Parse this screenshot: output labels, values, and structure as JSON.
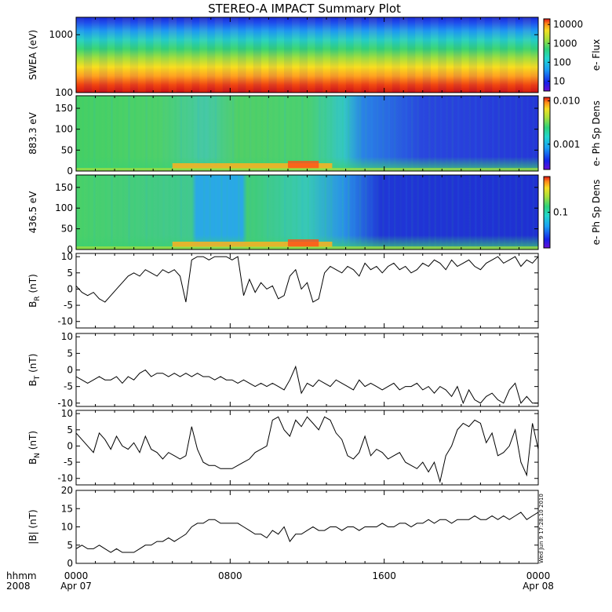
{
  "title": "STEREO-A IMPACT Summary Plot",
  "timestamp": "Wed Jun 9 17:28:10 2010",
  "time_axis": {
    "row_label_1": "hhmm",
    "row_label_2": "2008",
    "ticks": [
      {
        "hour": 0,
        "label": "0000",
        "date": "Apr 07"
      },
      {
        "hour": 8,
        "label": "0800",
        "date": ""
      },
      {
        "hour": 16,
        "label": "1600",
        "date": ""
      },
      {
        "hour": 24,
        "label": "0000",
        "date": "Apr 08"
      }
    ]
  },
  "chart_data": [
    {
      "type": "heatmap",
      "id": "swea",
      "ylabel": "SWEA (eV)",
      "y_scale": "log",
      "ylim": [
        100,
        2000
      ],
      "yticks": [
        "100",
        "1000"
      ],
      "colorbar_label": "e- Flux",
      "colorbar_ticks": [
        "10",
        "100",
        "1000",
        "10000"
      ],
      "colorbar_scale": "log",
      "colorbar_range": [
        3,
        20000
      ]
    },
    {
      "type": "heatmap",
      "id": "pad883",
      "ylabel": "883.3 eV",
      "ylim": [
        0,
        180
      ],
      "yticks": [
        "0",
        "50",
        "100",
        "150"
      ],
      "colorbar_label": "e- Ph Sp Dens",
      "colorbar_ticks": [
        "0.001",
        "0.010"
      ],
      "colorbar_scale": "log"
    },
    {
      "type": "heatmap",
      "id": "pad436",
      "ylabel": "436.5 eV",
      "ylim": [
        0,
        180
      ],
      "yticks": [
        "0",
        "50",
        "100",
        "150"
      ],
      "colorbar_label": "e- Ph Sp Dens",
      "colorbar_ticks": [
        "0.1"
      ],
      "colorbar_scale": "log"
    },
    {
      "type": "line",
      "id": "br",
      "ylabel": "B",
      "ylabel_sub": "R",
      "ylabel_unit": "(nT)",
      "ylim": [
        -12,
        11
      ],
      "yticks": [
        "-10",
        "-5",
        "0",
        "5",
        "10"
      ],
      "xlim": [
        0,
        24
      ],
      "x": [
        0,
        0.3,
        0.6,
        0.9,
        1.2,
        1.5,
        1.8,
        2.1,
        2.4,
        2.7,
        3.0,
        3.3,
        3.6,
        3.9,
        4.2,
        4.5,
        4.8,
        5.1,
        5.4,
        5.7,
        6.0,
        6.3,
        6.6,
        6.9,
        7.2,
        7.5,
        7.8,
        8.1,
        8.4,
        8.7,
        9.0,
        9.3,
        9.6,
        9.9,
        10.2,
        10.5,
        10.8,
        11.1,
        11.4,
        11.7,
        12.0,
        12.3,
        12.6,
        12.9,
        13.2,
        13.5,
        13.8,
        14.1,
        14.4,
        14.7,
        15.0,
        15.3,
        15.6,
        15.9,
        16.2,
        16.5,
        16.8,
        17.1,
        17.4,
        17.7,
        18.0,
        18.3,
        18.6,
        18.9,
        19.2,
        19.5,
        19.8,
        20.1,
        20.4,
        20.7,
        21.0,
        21.3,
        21.6,
        21.9,
        22.2,
        22.5,
        22.8,
        23.1,
        23.4,
        23.7,
        24.0
      ],
      "y": [
        1,
        -1,
        -2,
        -1,
        -3,
        -4,
        -2,
        0,
        2,
        4,
        5,
        4,
        6,
        5,
        4,
        6,
        5,
        6,
        4,
        -4,
        9,
        10,
        10,
        9,
        10,
        10,
        10,
        9,
        10,
        -2,
        3,
        -1,
        2,
        0,
        1,
        -3,
        -2,
        4,
        6,
        0,
        2,
        -4,
        -3,
        5,
        7,
        6,
        5,
        7,
        6,
        4,
        8,
        6,
        7,
        5,
        7,
        8,
        6,
        7,
        5,
        6,
        8,
        7,
        9,
        8,
        6,
        9,
        7,
        8,
        9,
        7,
        6,
        8,
        9,
        10,
        8,
        9,
        10,
        7,
        9,
        8,
        10
      ]
    },
    {
      "type": "line",
      "id": "bt",
      "ylabel": "B",
      "ylabel_sub": "T",
      "ylabel_unit": "(nT)",
      "ylim": [
        -11,
        11
      ],
      "yticks": [
        "-10",
        "-5",
        "0",
        "5",
        "10"
      ],
      "xlim": [
        0,
        24
      ],
      "x": [
        0,
        0.3,
        0.6,
        0.9,
        1.2,
        1.5,
        1.8,
        2.1,
        2.4,
        2.7,
        3.0,
        3.3,
        3.6,
        3.9,
        4.2,
        4.5,
        4.8,
        5.1,
        5.4,
        5.7,
        6.0,
        6.3,
        6.6,
        6.9,
        7.2,
        7.5,
        7.8,
        8.1,
        8.4,
        8.7,
        9.0,
        9.3,
        9.6,
        9.9,
        10.2,
        10.5,
        10.8,
        11.1,
        11.4,
        11.7,
        12.0,
        12.3,
        12.6,
        12.9,
        13.2,
        13.5,
        13.8,
        14.1,
        14.4,
        14.7,
        15.0,
        15.3,
        15.6,
        15.9,
        16.2,
        16.5,
        16.8,
        17.1,
        17.4,
        17.7,
        18.0,
        18.3,
        18.6,
        18.9,
        19.2,
        19.5,
        19.8,
        20.1,
        20.4,
        20.7,
        21.0,
        21.3,
        21.6,
        21.9,
        22.2,
        22.5,
        22.8,
        23.1,
        23.4,
        23.7,
        24.0
      ],
      "y": [
        -2,
        -3,
        -4,
        -3,
        -2,
        -3,
        -3,
        -2,
        -4,
        -2,
        -3,
        -1,
        0,
        -2,
        -1,
        -1,
        -2,
        -1,
        -2,
        -1,
        -2,
        -1,
        -2,
        -2,
        -3,
        -2,
        -3,
        -3,
        -4,
        -3,
        -4,
        -5,
        -4,
        -5,
        -4,
        -5,
        -6,
        -3,
        1,
        -7,
        -4,
        -5,
        -3,
        -4,
        -5,
        -3,
        -4,
        -5,
        -6,
        -3,
        -5,
        -4,
        -5,
        -6,
        -5,
        -4,
        -6,
        -5,
        -5,
        -4,
        -6,
        -5,
        -7,
        -5,
        -6,
        -8,
        -5,
        -10,
        -6,
        -9,
        -10,
        -8,
        -7,
        -9,
        -10,
        -6,
        -4,
        -10,
        -8,
        -10,
        -10
      ]
    },
    {
      "type": "line",
      "id": "bn",
      "ylabel": "B",
      "ylabel_sub": "N",
      "ylabel_unit": "(nT)",
      "ylim": [
        -12,
        11
      ],
      "yticks": [
        "-10",
        "-5",
        "0",
        "5",
        "10"
      ],
      "xlim": [
        0,
        24
      ],
      "x": [
        0,
        0.3,
        0.6,
        0.9,
        1.2,
        1.5,
        1.8,
        2.1,
        2.4,
        2.7,
        3.0,
        3.3,
        3.6,
        3.9,
        4.2,
        4.5,
        4.8,
        5.1,
        5.4,
        5.7,
        6.0,
        6.3,
        6.6,
        6.9,
        7.2,
        7.5,
        7.8,
        8.1,
        8.4,
        8.7,
        9.0,
        9.3,
        9.6,
        9.9,
        10.2,
        10.5,
        10.8,
        11.1,
        11.4,
        11.7,
        12.0,
        12.3,
        12.6,
        12.9,
        13.2,
        13.5,
        13.8,
        14.1,
        14.4,
        14.7,
        15.0,
        15.3,
        15.6,
        15.9,
        16.2,
        16.5,
        16.8,
        17.1,
        17.4,
        17.7,
        18.0,
        18.3,
        18.6,
        18.9,
        19.2,
        19.5,
        19.8,
        20.1,
        20.4,
        20.7,
        21.0,
        21.3,
        21.6,
        21.9,
        22.2,
        22.5,
        22.8,
        23.1,
        23.4,
        23.7,
        24.0
      ],
      "y": [
        4,
        2,
        0,
        -2,
        4,
        2,
        -1,
        3,
        0,
        -1,
        1,
        -2,
        3,
        -1,
        -2,
        -4,
        -2,
        -3,
        -4,
        -3,
        6,
        -1,
        -5,
        -6,
        -6,
        -7,
        -7,
        -7,
        -6,
        -5,
        -4,
        -2,
        -1,
        0,
        8,
        9,
        5,
        3,
        8,
        6,
        9,
        7,
        5,
        9,
        8,
        4,
        2,
        -3,
        -4,
        -2,
        3,
        -3,
        -1,
        -2,
        -4,
        -3,
        -2,
        -5,
        -6,
        -7,
        -5,
        -8,
        -5,
        -11,
        -3,
        0,
        5,
        7,
        6,
        8,
        7,
        1,
        4,
        -3,
        -2,
        0,
        5,
        -5,
        -9,
        7,
        -1
      ]
    },
    {
      "type": "line",
      "id": "bmag",
      "ylabel": "|B|",
      "ylabel_unit": "(nT)",
      "ylim": [
        0,
        20
      ],
      "yticks": [
        "0",
        "5",
        "10",
        "15",
        "20"
      ],
      "xlim": [
        0,
        24
      ],
      "x": [
        0,
        0.3,
        0.6,
        0.9,
        1.2,
        1.5,
        1.8,
        2.1,
        2.4,
        2.7,
        3.0,
        3.3,
        3.6,
        3.9,
        4.2,
        4.5,
        4.8,
        5.1,
        5.4,
        5.7,
        6.0,
        6.3,
        6.6,
        6.9,
        7.2,
        7.5,
        7.8,
        8.1,
        8.4,
        8.7,
        9.0,
        9.3,
        9.6,
        9.9,
        10.2,
        10.5,
        10.8,
        11.1,
        11.4,
        11.7,
        12.0,
        12.3,
        12.6,
        12.9,
        13.2,
        13.5,
        13.8,
        14.1,
        14.4,
        14.7,
        15.0,
        15.3,
        15.6,
        15.9,
        16.2,
        16.5,
        16.8,
        17.1,
        17.4,
        17.7,
        18.0,
        18.3,
        18.6,
        18.9,
        19.2,
        19.5,
        19.8,
        20.1,
        20.4,
        20.7,
        21.0,
        21.3,
        21.6,
        21.9,
        22.2,
        22.5,
        22.8,
        23.1,
        23.4,
        23.7,
        24.0
      ],
      "y": [
        4,
        5,
        4,
        4,
        5,
        4,
        3,
        4,
        3,
        3,
        3,
        4,
        5,
        5,
        6,
        6,
        7,
        6,
        7,
        8,
        10,
        11,
        11,
        12,
        12,
        11,
        11,
        11,
        11,
        10,
        9,
        8,
        8,
        7,
        9,
        8,
        10,
        6,
        8,
        8,
        9,
        10,
        9,
        9,
        10,
        10,
        9,
        10,
        10,
        9,
        10,
        10,
        10,
        11,
        10,
        10,
        11,
        11,
        10,
        11,
        11,
        12,
        11,
        12,
        12,
        11,
        12,
        12,
        12,
        13,
        12,
        12,
        13,
        12,
        13,
        12,
        13,
        14,
        12,
        13,
        14
      ]
    }
  ]
}
